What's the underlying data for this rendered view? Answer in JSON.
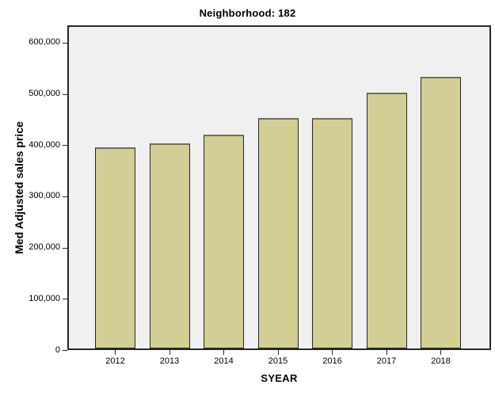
{
  "chart_data": {
    "type": "bar",
    "title": "Neighborhood: 182",
    "xlabel": "SYEAR",
    "ylabel": "Med Adjusted sales price",
    "categories": [
      "2012",
      "2013",
      "2014",
      "2015",
      "2016",
      "2017",
      "2018"
    ],
    "values": [
      393000,
      400000,
      418000,
      450000,
      450000,
      500000,
      530000
    ],
    "yticks": [
      0,
      100000,
      200000,
      300000,
      400000,
      500000,
      600000
    ],
    "ytick_labels": [
      "0",
      "100,000",
      "200,000",
      "300,000",
      "400,000",
      "500,000",
      "600,000"
    ],
    "ylim": [
      0,
      634000
    ],
    "grid": false,
    "legend": "none",
    "colors": {
      "bar_fill": "#d3cd96",
      "bar_border": "#26261f",
      "plot_bg": "#f0f0f0",
      "frame": "#282828",
      "figure_bg": "#ffffff",
      "text": "#000000"
    }
  }
}
